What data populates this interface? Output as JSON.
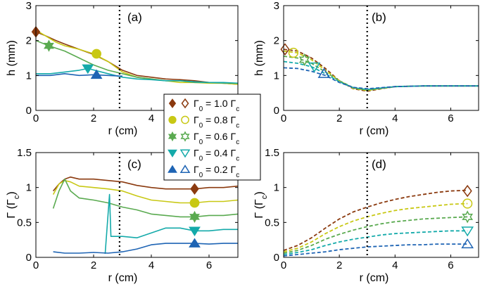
{
  "figure": {
    "legend": {
      "entries": [
        {
          "label": "Γ",
          "sub": "0",
          "eq": " = 1.0 ",
          "label2": "Γ",
          "sub2": "c",
          "color": "#8B3A0F",
          "filled_marker": "diamond",
          "open_marker": "diamond-open"
        },
        {
          "label": "Γ",
          "sub": "0",
          "eq": " = 0.8 ",
          "label2": "Γ",
          "sub2": "c",
          "color": "#C8C814",
          "filled_marker": "circle",
          "open_marker": "circle-open"
        },
        {
          "label": "Γ",
          "sub": "0",
          "eq": " = 0.6 ",
          "label2": "Γ",
          "sub2": "c",
          "color": "#5AAA50",
          "filled_marker": "hexagram",
          "open_marker": "hexagram-open"
        },
        {
          "label": "Γ",
          "sub": "0",
          "eq": " = 0.4 ",
          "label2": "Γ",
          "sub2": "c",
          "color": "#14AAAA",
          "filled_marker": "triangle-down",
          "open_marker": "triangle-down-open"
        },
        {
          "label": "Γ",
          "sub": "0",
          "eq": " = 0.2 ",
          "label2": "Γ",
          "sub2": "c",
          "color": "#1E64B4",
          "filled_marker": "triangle-up",
          "open_marker": "triangle-up-open"
        }
      ]
    }
  },
  "chart_data": [
    {
      "type": "line",
      "panel": "(a)",
      "xlabel": "r (cm)",
      "ylabel": "h (mm)",
      "xlim": [
        0,
        7
      ],
      "ylim": [
        0,
        3
      ],
      "xticks": [
        "0",
        "2",
        "4",
        "6"
      ],
      "yticks": [
        "0",
        "1",
        "2",
        "3"
      ],
      "vline_x": 2.9,
      "series": [
        {
          "name": "Γ0 = 1.0 Γc",
          "color": "#8B3A0F",
          "marker": "diamond",
          "marker_at": [
            0.0,
            2.25
          ],
          "x": [
            0,
            0.3,
            0.7,
            1.0,
            1.5,
            2.0,
            2.5,
            3.0,
            3.5,
            4.0,
            4.5,
            5.0,
            5.5,
            6.0,
            6.5,
            7.0
          ],
          "y": [
            2.25,
            2.15,
            2.0,
            1.9,
            1.75,
            1.6,
            1.4,
            1.15,
            1.0,
            0.95,
            0.9,
            0.88,
            0.85,
            0.8,
            0.78,
            0.75
          ]
        },
        {
          "name": "Γ0 = 0.8 Γc",
          "color": "#C8C814",
          "marker": "circle",
          "marker_at": [
            2.1,
            1.62
          ],
          "x": [
            0,
            0.3,
            0.7,
            1.0,
            1.5,
            2.0,
            2.5,
            3.0,
            3.5,
            4.0,
            4.5,
            5.0,
            5.5,
            6.0,
            6.5,
            7.0
          ],
          "y": [
            2.3,
            2.15,
            1.95,
            1.85,
            1.75,
            1.62,
            1.4,
            1.1,
            0.95,
            0.9,
            0.85,
            0.8,
            0.8,
            0.78,
            0.78,
            0.75
          ]
        },
        {
          "name": "Γ0 = 0.6 Γc",
          "color": "#5AAA50",
          "marker": "hexagram",
          "marker_at": [
            0.45,
            1.85
          ],
          "x": [
            0,
            0.45,
            1.0,
            1.5,
            2.0,
            2.5,
            3.0,
            3.5,
            4.0,
            4.5,
            5.0,
            5.5,
            6.0,
            6.5,
            7.0
          ],
          "y": [
            2.0,
            1.85,
            1.7,
            1.5,
            1.3,
            1.15,
            1.05,
            0.95,
            0.9,
            0.85,
            0.85,
            0.8,
            0.8,
            0.78,
            0.78
          ]
        },
        {
          "name": "Γ0 = 0.4 Γc",
          "color": "#14AAAA",
          "marker": "triangle-down",
          "marker_at": [
            1.8,
            1.2
          ],
          "x": [
            0,
            0.5,
            1.0,
            1.5,
            1.8,
            2.5,
            3.0,
            3.5,
            4.0,
            4.5,
            5.0,
            5.5,
            6.0,
            6.5,
            7.0
          ],
          "y": [
            1.05,
            1.05,
            1.1,
            1.15,
            1.2,
            1.05,
            0.95,
            0.9,
            0.88,
            0.85,
            0.85,
            0.82,
            0.8,
            0.8,
            0.78
          ]
        },
        {
          "name": "Γ0 = 0.2 Γc",
          "color": "#1E64B4",
          "marker": "triangle-up",
          "marker_at": [
            2.1,
            1.02
          ],
          "x": [
            0,
            0.5,
            1.0,
            1.5,
            2.0,
            2.5,
            3.0
          ],
          "y": [
            1.0,
            1.0,
            1.05,
            1.0,
            1.02,
            1.0,
            0.98
          ]
        }
      ]
    },
    {
      "type": "line",
      "panel": "(b)",
      "xlabel": "r (cm)",
      "ylabel": "h (mm)",
      "xlim": [
        0,
        7
      ],
      "ylim": [
        0,
        3
      ],
      "xticks": [
        "0",
        "2",
        "4",
        "6"
      ],
      "yticks": [
        "0",
        "1",
        "2",
        "3"
      ],
      "vline_x": 3.0,
      "series": [
        {
          "name": "Γ0 = 1.0 Γc",
          "color": "#8B3A0F",
          "dashed": true,
          "marker": "diamond-open",
          "marker_at": [
            0.05,
            1.75
          ],
          "x": [
            0,
            0.5,
            1.0,
            1.5,
            2.0,
            2.5,
            3.0,
            3.5,
            4.0,
            5.0,
            6.0,
            7.0
          ],
          "y": [
            1.75,
            1.7,
            1.5,
            1.2,
            0.85,
            0.62,
            0.55,
            0.62,
            0.68,
            0.7,
            0.7,
            0.7
          ]
        },
        {
          "name": "Γ0 = 0.8 Γc",
          "color": "#C8C814",
          "dashed": true,
          "marker": "circle-open",
          "marker_at": [
            0.35,
            1.65
          ],
          "x": [
            0,
            0.5,
            1.0,
            1.5,
            2.0,
            2.5,
            3.0,
            3.5,
            4.0,
            5.0,
            6.0,
            7.0
          ],
          "y": [
            1.7,
            1.65,
            1.45,
            1.15,
            0.85,
            0.63,
            0.57,
            0.63,
            0.68,
            0.7,
            0.7,
            0.7
          ]
        },
        {
          "name": "Γ0 = 0.6 Γc",
          "color": "#5AAA50",
          "dashed": true,
          "marker": "hexagram-open",
          "marker_at": [
            0.75,
            1.45
          ],
          "x": [
            0,
            0.5,
            1.0,
            1.5,
            2.0,
            2.5,
            3.0,
            3.5,
            4.0,
            5.0,
            6.0,
            7.0
          ],
          "y": [
            1.55,
            1.5,
            1.35,
            1.1,
            0.85,
            0.65,
            0.58,
            0.63,
            0.68,
            0.7,
            0.7,
            0.7
          ]
        },
        {
          "name": "Γ0 = 0.4 Γc",
          "color": "#14AAAA",
          "dashed": true,
          "marker": "triangle-down-open",
          "marker_at": [
            1.1,
            1.25
          ],
          "x": [
            0,
            0.5,
            1.0,
            1.5,
            2.0,
            2.5,
            3.0,
            3.5,
            4.0,
            5.0,
            6.0,
            7.0
          ],
          "y": [
            1.4,
            1.35,
            1.25,
            1.05,
            0.82,
            0.65,
            0.6,
            0.64,
            0.68,
            0.7,
            0.7,
            0.7
          ]
        },
        {
          "name": "Γ0 = 0.2 Γc",
          "color": "#1E64B4",
          "dashed": true,
          "marker": "triangle-up-open",
          "marker_at": [
            1.45,
            1.05
          ],
          "x": [
            0,
            0.5,
            1.0,
            1.5,
            2.0,
            2.5,
            3.0,
            3.5,
            4.0,
            5.0,
            6.0,
            7.0
          ],
          "y": [
            1.22,
            1.2,
            1.12,
            1.0,
            0.8,
            0.66,
            0.62,
            0.65,
            0.68,
            0.7,
            0.7,
            0.7
          ]
        }
      ]
    },
    {
      "type": "line",
      "panel": "(c)",
      "xlabel": "r (cm)",
      "ylabel": "Γ (Γc)",
      "xlim": [
        0,
        7
      ],
      "ylim": [
        0,
        1.5
      ],
      "xticks": [
        "0",
        "2",
        "4",
        "6"
      ],
      "yticks": [
        "0",
        "0.5",
        "1",
        "1.5"
      ],
      "vline_x": 2.9,
      "series": [
        {
          "name": "Γ0 = 1.0 Γc",
          "color": "#8B3A0F",
          "marker": "diamond",
          "marker_at": [
            5.5,
            0.98
          ],
          "x": [
            0.6,
            0.8,
            1.0,
            1.2,
            1.5,
            2.0,
            2.5,
            3.0,
            3.5,
            4.0,
            4.5,
            5.0,
            5.5,
            6.0,
            6.5,
            7.0
          ],
          "y": [
            0.95,
            1.05,
            1.12,
            1.15,
            1.12,
            1.12,
            1.1,
            1.08,
            1.03,
            1.0,
            0.98,
            0.98,
            0.98,
            1.0,
            1.0,
            1.02
          ]
        },
        {
          "name": "Γ0 = 0.8 Γc",
          "color": "#C8C814",
          "marker": "circle",
          "marker_at": [
            5.5,
            0.78
          ],
          "x": [
            0.6,
            0.8,
            1.0,
            1.2,
            1.5,
            2.0,
            2.5,
            3.0,
            3.5,
            4.0,
            4.5,
            5.0,
            5.5,
            6.0,
            6.5,
            7.0
          ],
          "y": [
            0.9,
            1.05,
            1.1,
            1.08,
            1.02,
            1.0,
            0.98,
            0.95,
            0.88,
            0.82,
            0.8,
            0.78,
            0.78,
            0.8,
            0.8,
            0.82
          ]
        },
        {
          "name": "Γ0 = 0.6 Γc",
          "color": "#5AAA50",
          "marker": "hexagram",
          "marker_at": [
            5.5,
            0.58
          ],
          "x": [
            0.6,
            0.8,
            1.0,
            1.2,
            1.5,
            2.0,
            2.5,
            3.0,
            3.5,
            4.0,
            4.5,
            5.0,
            5.5,
            6.0,
            6.5,
            7.0
          ],
          "y": [
            0.7,
            0.95,
            1.12,
            0.95,
            0.85,
            0.82,
            0.78,
            0.72,
            0.68,
            0.62,
            0.6,
            0.58,
            0.58,
            0.6,
            0.6,
            0.62
          ]
        },
        {
          "name": "Γ0 = 0.4 Γc",
          "color": "#14AAAA",
          "marker": "triangle-down",
          "marker_at": [
            5.5,
            0.38
          ],
          "x": [
            2.4,
            2.55,
            2.6,
            2.7,
            2.8,
            3.0,
            3.5,
            4.0,
            4.5,
            5.0,
            5.5,
            6.0,
            6.5,
            7.0
          ],
          "y": [
            0.05,
            0.9,
            0.3,
            0.3,
            0.3,
            0.3,
            0.28,
            0.35,
            0.42,
            0.42,
            0.38,
            0.38,
            0.4,
            0.4
          ]
        },
        {
          "name": "Γ0 = 0.2 Γc",
          "color": "#1E64B4",
          "marker": "triangle-up",
          "marker_at": [
            5.5,
            0.2
          ],
          "x": [
            0.6,
            1.0,
            1.5,
            2.0,
            2.5,
            3.0,
            3.5,
            4.0,
            4.5,
            5.0,
            5.5,
            6.0,
            6.5,
            7.0
          ],
          "y": [
            0.08,
            0.06,
            0.06,
            0.07,
            0.06,
            0.08,
            0.12,
            0.18,
            0.2,
            0.2,
            0.2,
            0.19,
            0.2,
            0.2
          ]
        }
      ]
    },
    {
      "type": "line",
      "panel": "(d)",
      "xlabel": "r (cm)",
      "ylabel": "Γ (Γc)",
      "xlim": [
        0,
        7
      ],
      "ylim": [
        0,
        1.5
      ],
      "xticks": [
        "0",
        "2",
        "4",
        "6"
      ],
      "yticks": [
        "0",
        "0.5",
        "1",
        "1.5"
      ],
      "vline_x": 3.0,
      "series": [
        {
          "name": "Γ0 = 1.0 Γc",
          "color": "#8B3A0F",
          "dashed": true,
          "marker": "diamond-open",
          "marker_at": [
            6.6,
            0.95
          ],
          "x": [
            0,
            0.5,
            1.0,
            1.5,
            2.0,
            2.5,
            3.0,
            3.5,
            4.0,
            4.5,
            5.0,
            5.5,
            6.0,
            6.6
          ],
          "y": [
            0.1,
            0.17,
            0.28,
            0.42,
            0.55,
            0.65,
            0.72,
            0.78,
            0.83,
            0.87,
            0.9,
            0.93,
            0.95,
            0.96
          ]
        },
        {
          "name": "Γ0 = 0.8 Γc",
          "color": "#C8C814",
          "dashed": true,
          "marker": "circle-open",
          "marker_at": [
            6.6,
            0.77
          ],
          "x": [
            0,
            0.5,
            1.0,
            1.5,
            2.0,
            2.5,
            3.0,
            3.5,
            4.0,
            4.5,
            5.0,
            5.5,
            6.0,
            6.6
          ],
          "y": [
            0.08,
            0.13,
            0.22,
            0.34,
            0.44,
            0.52,
            0.58,
            0.63,
            0.67,
            0.7,
            0.72,
            0.74,
            0.76,
            0.77
          ]
        },
        {
          "name": "Γ0 = 0.6 Γc",
          "color": "#5AAA50",
          "dashed": true,
          "marker": "hexagram-open",
          "marker_at": [
            6.6,
            0.58
          ],
          "x": [
            0,
            0.5,
            1.0,
            1.5,
            2.0,
            2.5,
            3.0,
            3.5,
            4.0,
            4.5,
            5.0,
            5.5,
            6.0,
            6.6
          ],
          "y": [
            0.06,
            0.1,
            0.17,
            0.26,
            0.33,
            0.39,
            0.44,
            0.48,
            0.51,
            0.53,
            0.55,
            0.56,
            0.57,
            0.58
          ]
        },
        {
          "name": "Γ0 = 0.4 Γc",
          "color": "#14AAAA",
          "dashed": true,
          "marker": "triangle-down-open",
          "marker_at": [
            6.6,
            0.38
          ],
          "x": [
            0,
            0.5,
            1.0,
            1.5,
            2.0,
            2.5,
            3.0,
            3.5,
            4.0,
            4.5,
            5.0,
            5.5,
            6.0,
            6.6
          ],
          "y": [
            0.04,
            0.07,
            0.11,
            0.17,
            0.22,
            0.26,
            0.29,
            0.32,
            0.34,
            0.35,
            0.36,
            0.37,
            0.38,
            0.38
          ]
        },
        {
          "name": "Γ0 = 0.2 Γc",
          "color": "#1E64B4",
          "dashed": true,
          "marker": "triangle-up-open",
          "marker_at": [
            6.6,
            0.19
          ],
          "x": [
            0,
            0.5,
            1.0,
            1.5,
            2.0,
            2.5,
            3.0,
            3.5,
            4.0,
            4.5,
            5.0,
            5.5,
            6.0,
            6.6
          ],
          "y": [
            0.02,
            0.04,
            0.06,
            0.08,
            0.11,
            0.13,
            0.15,
            0.16,
            0.17,
            0.18,
            0.18,
            0.19,
            0.19,
            0.19
          ]
        }
      ]
    }
  ]
}
